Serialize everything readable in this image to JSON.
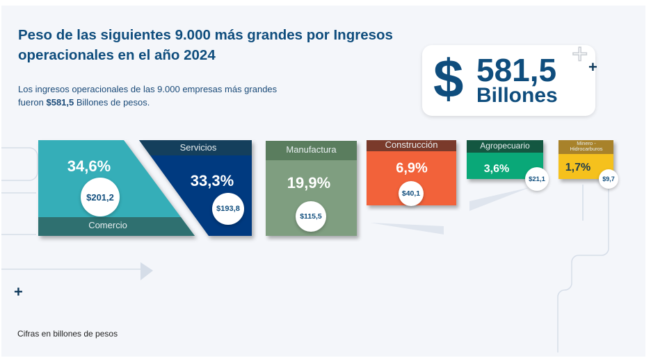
{
  "header": {
    "title": "Peso de las siguientes 9.000 más grandes por Ingresos operacionales en el año 2024",
    "subtitle_pre": "Los ingresos operacionales de las 9.000 empresas más grandes fueron ",
    "subtitle_bold": "$581,5",
    "subtitle_post": " Billones de pesos."
  },
  "total": {
    "currency": "$",
    "amount": "581,5",
    "unit": "Billones"
  },
  "footnote": "Cifras en billones de pesos",
  "colors": {
    "title": "#0f4d7d",
    "comercio": "#35aeb8",
    "servicios": "#003a80",
    "manufactura": "#7f9e80",
    "construccion": "#f2623a",
    "agropecuario": "#0aa878",
    "minero": "#f5c11d"
  },
  "chart_data": {
    "type": "bar",
    "categories": [
      "Comercio",
      "Servicios",
      "Manufactura",
      "Construcción",
      "Agropecuario",
      "Minero - Hidrocarburos"
    ],
    "shares_pct": [
      34.6,
      33.3,
      19.9,
      6.9,
      3.6,
      1.7
    ],
    "share_labels": [
      "34,6%",
      "33,3%",
      "19,9%",
      "6,9%",
      "3,6%",
      "1,7%"
    ],
    "values": [
      201.2,
      193.8,
      115.5,
      40.1,
      21.1,
      9.7
    ],
    "value_labels": [
      "$201,2",
      "$193,8",
      "$115,5",
      "$40,1",
      "$21,1",
      "$9,7"
    ],
    "unit": "billones de pesos"
  }
}
